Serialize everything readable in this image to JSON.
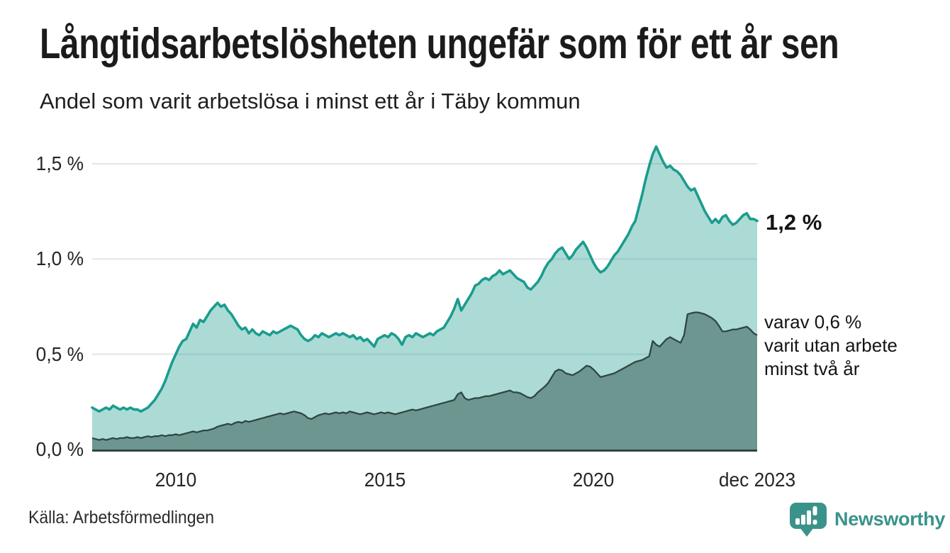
{
  "header": {
    "title": "Långtidsarbetslösheten ungefär som för ett år sen",
    "subtitle": "Andel som varit arbetslösa i minst ett år i Täby kommun"
  },
  "annotations": {
    "latest_total": "1,2 %",
    "two_year_line1": "varav 0,6 %",
    "two_year_line2": "varit utan arbete",
    "two_year_line3": "minst två år"
  },
  "footer": {
    "source": "Källa: Arbetsförmedlingen",
    "brand": "Newsworthy",
    "logo_icon": "newsworthy-speech-bubble-bar-chart-icon"
  },
  "colors": {
    "background": "#ffffff",
    "gridline": "#e4e3ea",
    "axis_line": "#2e4742",
    "total_line": "#1a9c8e",
    "total_fill": "rgba(26,156,142,0.36)",
    "two_year_line": "#2e4742",
    "two_year_fill": "#6e9691",
    "brand_teal": "#3a938b"
  },
  "chart_data": {
    "type": "area",
    "title": "Långtidsarbetslösheten ungefär som för ett år sen",
    "subtitle": "Andel som varit arbetslösa i minst ett år i Täby kommun",
    "unit": "%",
    "frequency": "monthly",
    "x_start": "2008-01",
    "x_end": "2023-12",
    "ylim": [
      0,
      1.65
    ],
    "grid": "horizontal",
    "x_ticks": [
      {
        "label": "2010",
        "month_index": 24
      },
      {
        "label": "2015",
        "month_index": 84
      },
      {
        "label": "2020",
        "month_index": 144
      },
      {
        "label": "dec 2023",
        "month_index": 191
      }
    ],
    "y_ticks": [
      {
        "label": "0,0 %",
        "value": 0
      },
      {
        "label": "0,5 %",
        "value": 0.5
      },
      {
        "label": "1,0 %",
        "value": 1.0
      },
      {
        "label": "1,5 %",
        "value": 1.5
      }
    ],
    "series": [
      {
        "name": "Andel arbetslösa minst ett år",
        "end_label": "1,2 %",
        "values": [
          0.22,
          0.21,
          0.2,
          0.21,
          0.22,
          0.21,
          0.23,
          0.22,
          0.21,
          0.22,
          0.21,
          0.22,
          0.21,
          0.21,
          0.2,
          0.21,
          0.22,
          0.24,
          0.26,
          0.29,
          0.32,
          0.36,
          0.41,
          0.46,
          0.5,
          0.54,
          0.57,
          0.58,
          0.62,
          0.66,
          0.64,
          0.68,
          0.67,
          0.7,
          0.73,
          0.75,
          0.77,
          0.75,
          0.76,
          0.73,
          0.71,
          0.68,
          0.65,
          0.63,
          0.64,
          0.61,
          0.63,
          0.61,
          0.6,
          0.62,
          0.61,
          0.6,
          0.62,
          0.61,
          0.62,
          0.63,
          0.64,
          0.65,
          0.64,
          0.63,
          0.6,
          0.58,
          0.57,
          0.58,
          0.6,
          0.59,
          0.61,
          0.6,
          0.59,
          0.6,
          0.61,
          0.6,
          0.61,
          0.6,
          0.59,
          0.6,
          0.58,
          0.59,
          0.57,
          0.58,
          0.56,
          0.54,
          0.58,
          0.59,
          0.6,
          0.59,
          0.61,
          0.6,
          0.58,
          0.55,
          0.59,
          0.6,
          0.59,
          0.61,
          0.6,
          0.59,
          0.6,
          0.61,
          0.6,
          0.62,
          0.63,
          0.64,
          0.67,
          0.7,
          0.74,
          0.79,
          0.73,
          0.76,
          0.79,
          0.82,
          0.86,
          0.87,
          0.89,
          0.9,
          0.89,
          0.91,
          0.92,
          0.94,
          0.92,
          0.93,
          0.94,
          0.92,
          0.9,
          0.89,
          0.88,
          0.85,
          0.84,
          0.86,
          0.88,
          0.91,
          0.95,
          0.98,
          1.0,
          1.03,
          1.05,
          1.06,
          1.03,
          1.0,
          1.02,
          1.05,
          1.07,
          1.09,
          1.06,
          1.02,
          0.98,
          0.95,
          0.93,
          0.94,
          0.96,
          0.99,
          1.02,
          1.04,
          1.07,
          1.1,
          1.13,
          1.17,
          1.2,
          1.27,
          1.34,
          1.42,
          1.49,
          1.55,
          1.59,
          1.55,
          1.51,
          1.48,
          1.49,
          1.47,
          1.46,
          1.44,
          1.41,
          1.38,
          1.36,
          1.37,
          1.33,
          1.29,
          1.25,
          1.22,
          1.19,
          1.21,
          1.19,
          1.22,
          1.23,
          1.2,
          1.18,
          1.19,
          1.21,
          1.23,
          1.24,
          1.21,
          1.21,
          1.2
        ]
      },
      {
        "name": "Andel arbetslösa minst två år",
        "end_label": "varav 0,6 % varit utan arbete minst två år",
        "values": [
          0.06,
          0.055,
          0.05,
          0.055,
          0.05,
          0.055,
          0.06,
          0.055,
          0.06,
          0.06,
          0.065,
          0.06,
          0.06,
          0.065,
          0.06,
          0.065,
          0.07,
          0.065,
          0.07,
          0.07,
          0.075,
          0.07,
          0.075,
          0.075,
          0.08,
          0.075,
          0.08,
          0.085,
          0.09,
          0.095,
          0.09,
          0.095,
          0.1,
          0.1,
          0.105,
          0.11,
          0.12,
          0.125,
          0.13,
          0.135,
          0.13,
          0.14,
          0.145,
          0.14,
          0.15,
          0.145,
          0.15,
          0.155,
          0.16,
          0.165,
          0.17,
          0.175,
          0.18,
          0.185,
          0.19,
          0.185,
          0.19,
          0.195,
          0.2,
          0.195,
          0.19,
          0.18,
          0.165,
          0.16,
          0.17,
          0.18,
          0.185,
          0.19,
          0.185,
          0.19,
          0.195,
          0.19,
          0.195,
          0.19,
          0.2,
          0.195,
          0.19,
          0.185,
          0.19,
          0.195,
          0.19,
          0.185,
          0.19,
          0.195,
          0.19,
          0.195,
          0.19,
          0.185,
          0.19,
          0.195,
          0.2,
          0.205,
          0.21,
          0.205,
          0.21,
          0.215,
          0.22,
          0.225,
          0.23,
          0.235,
          0.24,
          0.245,
          0.25,
          0.255,
          0.26,
          0.29,
          0.3,
          0.27,
          0.26,
          0.265,
          0.27,
          0.27,
          0.275,
          0.28,
          0.28,
          0.285,
          0.29,
          0.295,
          0.3,
          0.305,
          0.31,
          0.3,
          0.3,
          0.295,
          0.285,
          0.275,
          0.27,
          0.28,
          0.3,
          0.315,
          0.33,
          0.35,
          0.38,
          0.41,
          0.42,
          0.415,
          0.4,
          0.395,
          0.39,
          0.4,
          0.41,
          0.425,
          0.44,
          0.435,
          0.42,
          0.4,
          0.38,
          0.385,
          0.39,
          0.395,
          0.4,
          0.41,
          0.42,
          0.43,
          0.44,
          0.45,
          0.46,
          0.465,
          0.47,
          0.48,
          0.49,
          0.57,
          0.55,
          0.54,
          0.56,
          0.58,
          0.59,
          0.58,
          0.57,
          0.56,
          0.6,
          0.71,
          0.715,
          0.72,
          0.72,
          0.715,
          0.71,
          0.7,
          0.69,
          0.675,
          0.65,
          0.62,
          0.62,
          0.625,
          0.63,
          0.63,
          0.635,
          0.64,
          0.645,
          0.63,
          0.61,
          0.6
        ]
      }
    ]
  }
}
